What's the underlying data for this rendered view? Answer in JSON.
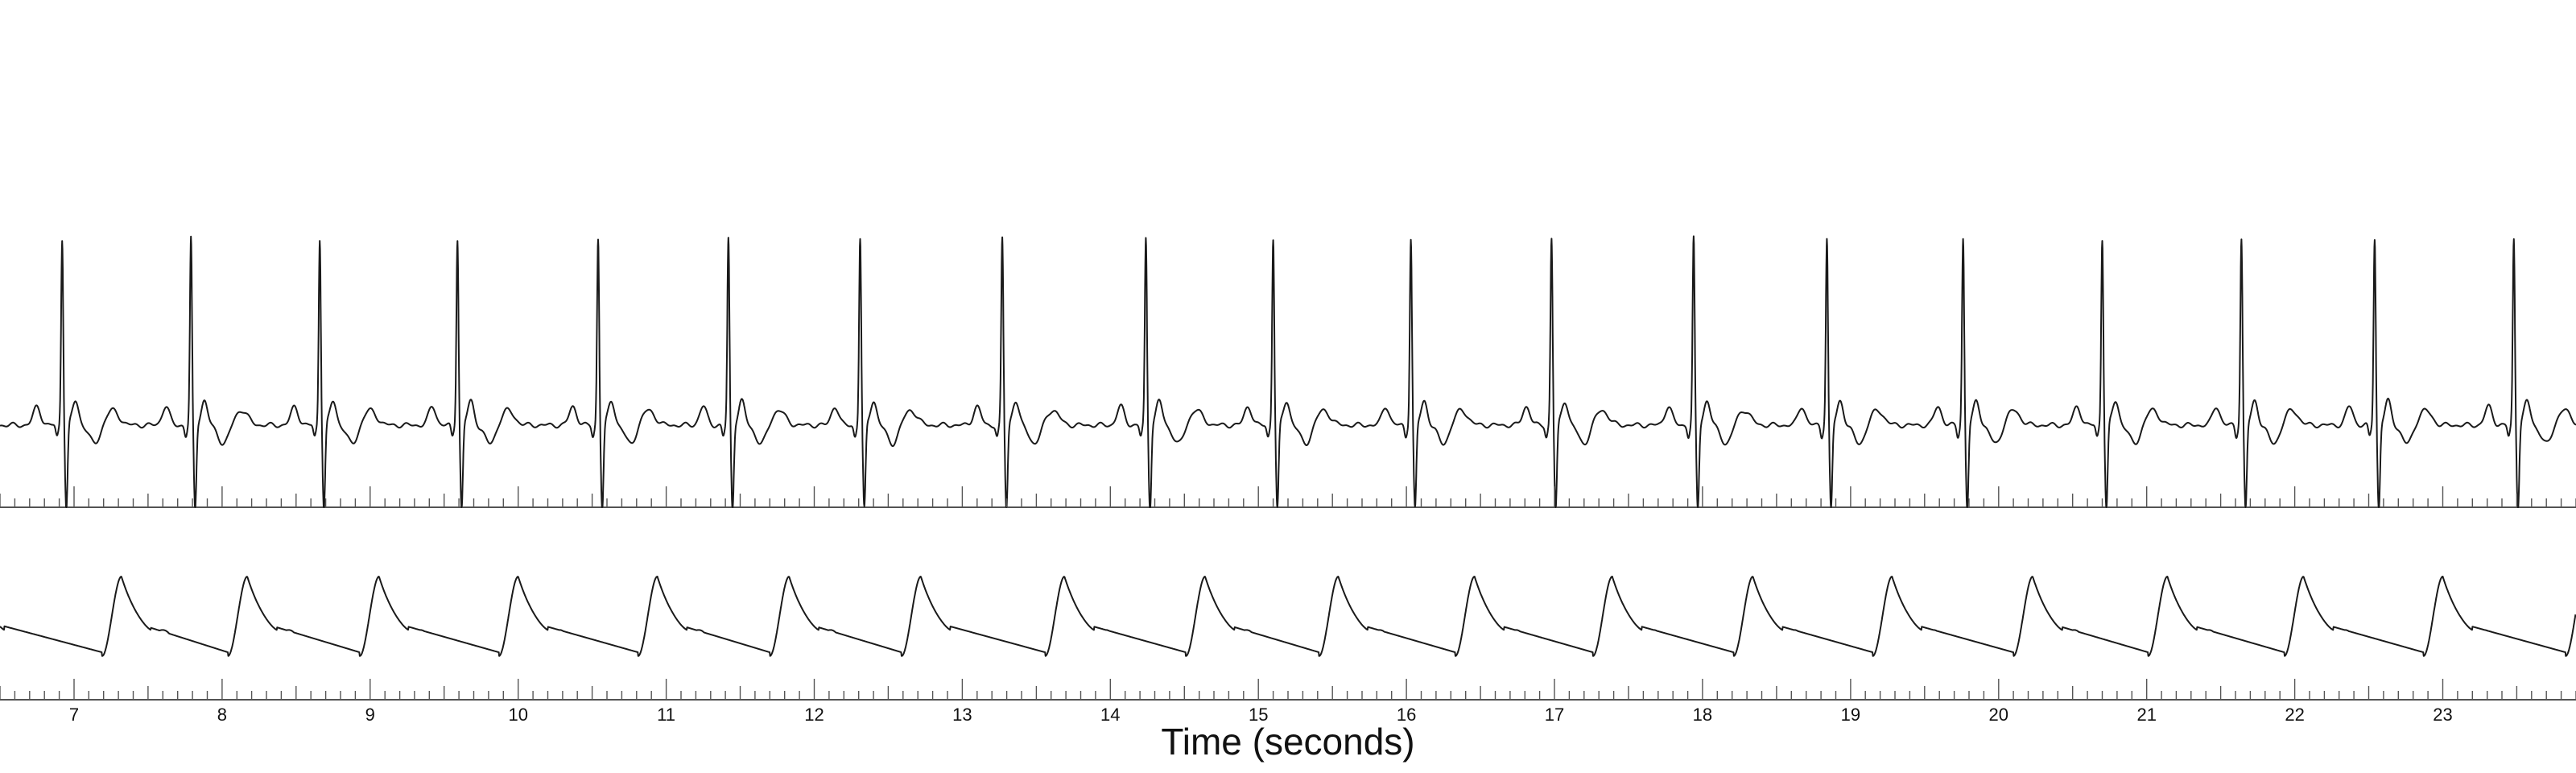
{
  "chart_data": {
    "type": "line",
    "xlabel": "Time (seconds)",
    "xlim": [
      6.5,
      23.9
    ],
    "x_ticks": [
      7,
      8,
      9,
      10,
      11,
      12,
      13,
      14,
      15,
      16,
      17,
      18,
      19,
      20,
      21,
      22,
      23
    ],
    "grid": false,
    "legend": "none",
    "series": [
      {
        "kind": "ecg",
        "r_peak_times": [
          6.92,
          7.79,
          8.66,
          9.59,
          10.54,
          11.42,
          12.31,
          13.27,
          14.24,
          15.1,
          16.03,
          16.98,
          17.94,
          18.84,
          19.76,
          20.7,
          21.64,
          22.54,
          23.48
        ]
      },
      {
        "kind": "pulse",
        "peak_times": [
          6.33,
          7.32,
          8.17,
          9.06,
          10.0,
          10.94,
          11.83,
          12.72,
          13.69,
          14.64,
          15.54,
          16.46,
          17.39,
          18.34,
          19.28,
          20.23,
          21.14,
          22.06,
          23.0,
          23.96
        ]
      }
    ]
  }
}
